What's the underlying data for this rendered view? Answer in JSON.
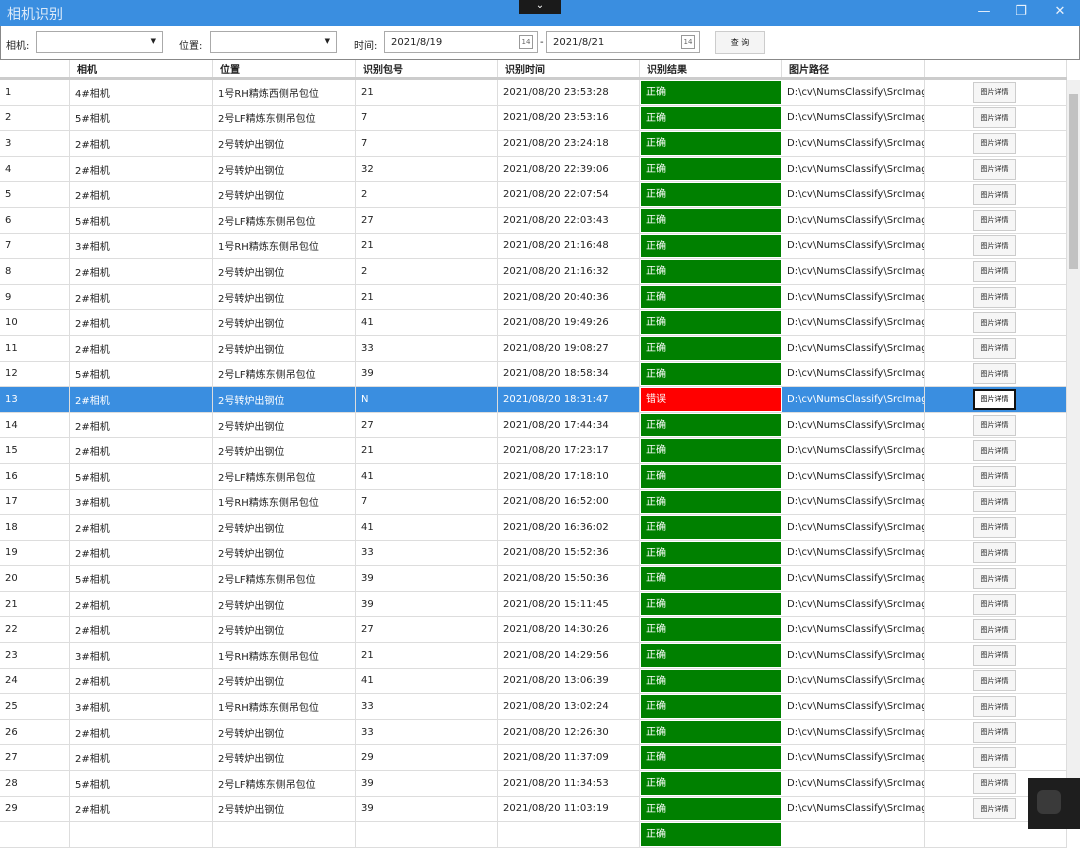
{
  "window": {
    "title": "相机识别",
    "collapse_icon": "chevron-down-icon",
    "minimize": "—",
    "restore": "❐",
    "close": "✕"
  },
  "toolbar": {
    "camera_label": "相机:",
    "camera_value": "",
    "position_label": "位置:",
    "position_value": "",
    "time_label": "时间:",
    "date_from": "2021/8/19",
    "date_sep": "-",
    "date_to": "2021/8/21",
    "calendar_text": "14",
    "query_label": "查 询"
  },
  "columns": [
    "",
    "相机",
    "位置",
    "识别包号",
    "识别时间",
    "识别结果",
    "图片路径",
    ""
  ],
  "detail_label": "图片详情",
  "path": "D:\\cv\\NumsClassify\\SrcImag",
  "colors": {
    "ok": "#008000",
    "error": "#ff0000",
    "selected": "#3a8ee0",
    "titlebar": "#3a8ee0"
  },
  "selected_row": 13,
  "rows": [
    [
      "1",
      "4#相机",
      "1号RH精炼西侧吊包位",
      "21",
      "2021/08/20 23:53:28",
      "正确"
    ],
    [
      "2",
      "5#相机",
      "2号LF精炼东侧吊包位",
      "7",
      "2021/08/20 23:53:16",
      "正确"
    ],
    [
      "3",
      "2#相机",
      "2号转炉出钢位",
      "7",
      "2021/08/20 23:24:18",
      "正确"
    ],
    [
      "4",
      "2#相机",
      "2号转炉出钢位",
      "32",
      "2021/08/20 22:39:06",
      "正确"
    ],
    [
      "5",
      "2#相机",
      "2号转炉出钢位",
      "2",
      "2021/08/20 22:07:54",
      "正确"
    ],
    [
      "6",
      "5#相机",
      "2号LF精炼东侧吊包位",
      "27",
      "2021/08/20 22:03:43",
      "正确"
    ],
    [
      "7",
      "3#相机",
      "1号RH精炼东侧吊包位",
      "21",
      "2021/08/20 21:16:48",
      "正确"
    ],
    [
      "8",
      "2#相机",
      "2号转炉出钢位",
      "2",
      "2021/08/20 21:16:32",
      "正确"
    ],
    [
      "9",
      "2#相机",
      "2号转炉出钢位",
      "21",
      "2021/08/20 20:40:36",
      "正确"
    ],
    [
      "10",
      "2#相机",
      "2号转炉出钢位",
      "41",
      "2021/08/20 19:49:26",
      "正确"
    ],
    [
      "11",
      "2#相机",
      "2号转炉出钢位",
      "33",
      "2021/08/20 19:08:27",
      "正确"
    ],
    [
      "12",
      "5#相机",
      "2号LF精炼东侧吊包位",
      "39",
      "2021/08/20 18:58:34",
      "正确"
    ],
    [
      "13",
      "2#相机",
      "2号转炉出钢位",
      "N",
      "2021/08/20 18:31:47",
      "错误"
    ],
    [
      "14",
      "2#相机",
      "2号转炉出钢位",
      "27",
      "2021/08/20 17:44:34",
      "正确"
    ],
    [
      "15",
      "2#相机",
      "2号转炉出钢位",
      "21",
      "2021/08/20 17:23:17",
      "正确"
    ],
    [
      "16",
      "5#相机",
      "2号LF精炼东侧吊包位",
      "41",
      "2021/08/20 17:18:10",
      "正确"
    ],
    [
      "17",
      "3#相机",
      "1号RH精炼东侧吊包位",
      "7",
      "2021/08/20 16:52:00",
      "正确"
    ],
    [
      "18",
      "2#相机",
      "2号转炉出钢位",
      "41",
      "2021/08/20 16:36:02",
      "正确"
    ],
    [
      "19",
      "2#相机",
      "2号转炉出钢位",
      "33",
      "2021/08/20 15:52:36",
      "正确"
    ],
    [
      "20",
      "5#相机",
      "2号LF精炼东侧吊包位",
      "39",
      "2021/08/20 15:50:36",
      "正确"
    ],
    [
      "21",
      "2#相机",
      "2号转炉出钢位",
      "39",
      "2021/08/20 15:11:45",
      "正确"
    ],
    [
      "22",
      "2#相机",
      "2号转炉出钢位",
      "27",
      "2021/08/20 14:30:26",
      "正确"
    ],
    [
      "23",
      "3#相机",
      "1号RH精炼东侧吊包位",
      "21",
      "2021/08/20 14:29:56",
      "正确"
    ],
    [
      "24",
      "2#相机",
      "2号转炉出钢位",
      "41",
      "2021/08/20 13:06:39",
      "正确"
    ],
    [
      "25",
      "3#相机",
      "1号RH精炼东侧吊包位",
      "33",
      "2021/08/20 13:02:24",
      "正确"
    ],
    [
      "26",
      "2#相机",
      "2号转炉出钢位",
      "33",
      "2021/08/20 12:26:30",
      "正确"
    ],
    [
      "27",
      "2#相机",
      "2号转炉出钢位",
      "29",
      "2021/08/20 11:37:09",
      "正确"
    ],
    [
      "28",
      "5#相机",
      "2号LF精炼东侧吊包位",
      "39",
      "2021/08/20 11:34:53",
      "正确"
    ],
    [
      "29",
      "2#相机",
      "2号转炉出钢位",
      "39",
      "2021/08/20 11:03:19",
      "正确"
    ],
    [
      "",
      "",
      "",
      "",
      "",
      "正确"
    ]
  ]
}
